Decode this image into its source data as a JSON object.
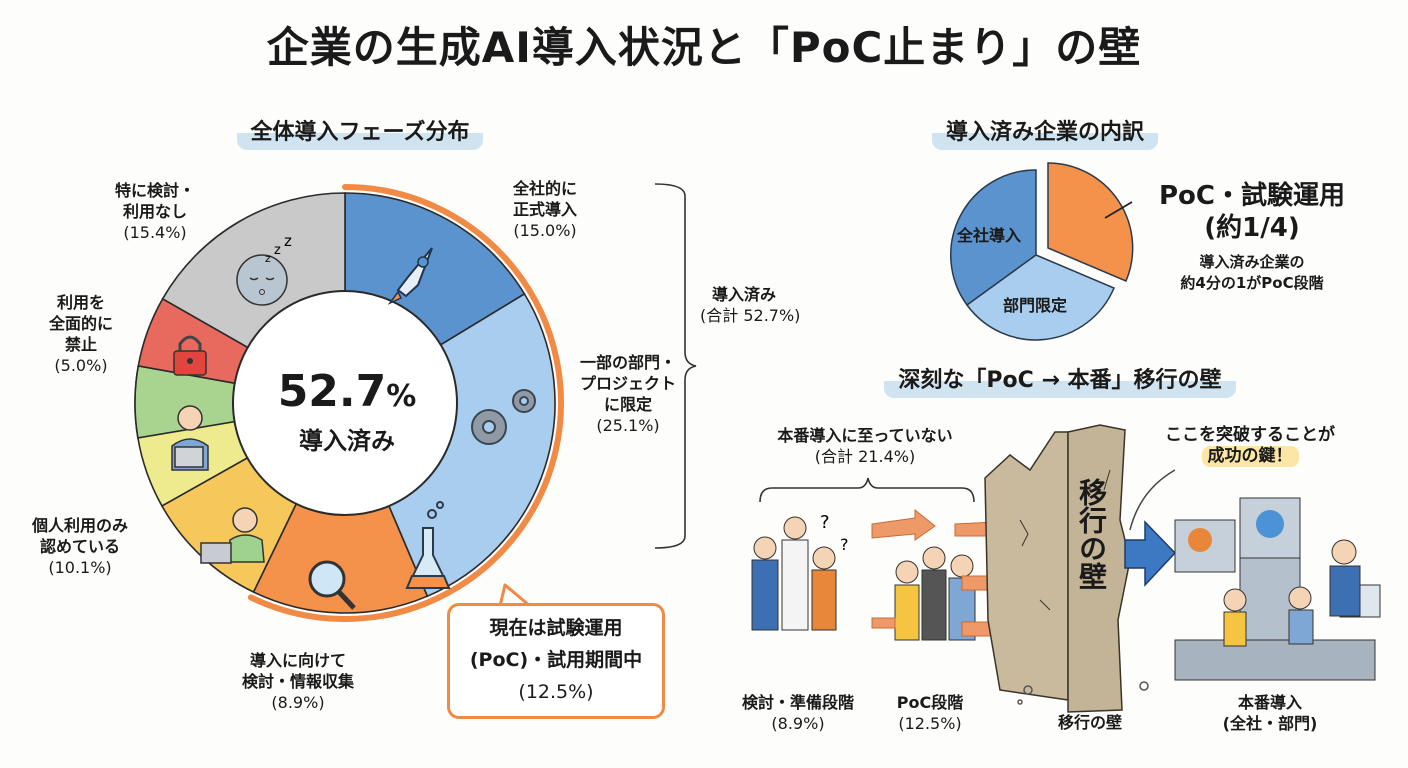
{
  "title": "企業の生成AI導入状況と「PoC止まり」の壁",
  "chart_data": [
    {
      "type": "pie",
      "subtype": "donut",
      "title": "全体導入フェーズ分布",
      "center_label": {
        "value": "52.7",
        "unit": "%",
        "text": "導入済み"
      },
      "categories": [
        "全社的に正式導入",
        "一部の部門・プロジェクトに限定",
        "現在は試験運用(PoC)・試用期間中",
        "導入に向けて検討・情報収集",
        "個人利用のみ認めている",
        "利用を全面的に禁止",
        "特に検討・利用なし"
      ],
      "values": [
        15.0,
        25.1,
        12.5,
        8.9,
        10.1,
        5.0,
        15.4
      ],
      "colors": [
        "#5b93cf",
        "#a9cdee",
        "#f4914a",
        "#f6c75a",
        "#eeeb8e",
        "#a9d48f",
        "#e86a5f",
        "#c9c9c9"
      ],
      "group_bracket": {
        "label": "導入済み",
        "total_label": "(合計 52.7%)",
        "members": [
          "全社的に正式導入",
          "一部の部門・プロジェクトに限定",
          "現在は試験運用(PoC)・試用期間中"
        ]
      }
    },
    {
      "type": "pie",
      "title": "導入済み企業の内訳",
      "categories": [
        "全社導入",
        "部門限定",
        "PoC・試験運用"
      ],
      "values": [
        15.0,
        25.1,
        12.5
      ],
      "annotation": {
        "headline": "PoC・試験運用",
        "sub": "(約1/4)",
        "note": "導入済み企業の約4分の1がPoC段階"
      }
    }
  ],
  "donut": {
    "section_title": "全体導入フェーズ分布",
    "center_value": "52.7",
    "center_unit": "%",
    "center_text": "導入済み",
    "labels": {
      "zensha": {
        "l1": "全社的に",
        "l2": "正式導入",
        "pct": "(15.0%)"
      },
      "bumon": {
        "l1": "一部の部門・",
        "l2": "プロジェクト",
        "l3": "に限定",
        "pct": "(25.1%)"
      },
      "poc": {
        "l1": "現在は試験運用",
        "l2": "(PoC)・試用期間中",
        "pct": "(12.5%)"
      },
      "kento": {
        "l1": "導入に向けて",
        "l2": "検討・情報収集",
        "pct": "(8.9%)"
      },
      "kojin": {
        "l1": "個人利用のみ",
        "l2": "認めている",
        "pct": "(10.1%)"
      },
      "kinshi": {
        "l1": "利用を",
        "l2": "全面的に",
        "l3": "禁止",
        "pct": "(5.0%)"
      },
      "nashi": {
        "l1": "特に検討・",
        "l2": "利用なし",
        "pct": "(15.4%)"
      }
    },
    "bracket": {
      "l1": "導入済み",
      "l2": "(合計 52.7%)"
    }
  },
  "breakdown": {
    "section_title": "導入済み企業の内訳",
    "slice_zensha": "全社導入",
    "slice_bumon": "部門限定",
    "headline": "PoC・試験運用",
    "sub": "(約1/4)",
    "note1": "導入済み企業の",
    "note2": "約4分の1がPoC段階"
  },
  "wall": {
    "section_title": "深刻な「PoC → 本番」移行の壁",
    "not_prod_l1": "本番導入に至っていない",
    "not_prod_l2": "(合計 21.4%)",
    "wall_text": "移行の壁",
    "key_l1": "ここを突破することが",
    "key_l2": "成功の鍵！",
    "stage1": {
      "l1": "検討・準備段階",
      "l2": "(8.9%)"
    },
    "stage2": {
      "l1": "PoC段階",
      "l2": "(12.5%)"
    },
    "stage3": {
      "l1": "移行の壁"
    },
    "stage4": {
      "l1": "本番導入",
      "l2": "(全社・部門)"
    }
  }
}
